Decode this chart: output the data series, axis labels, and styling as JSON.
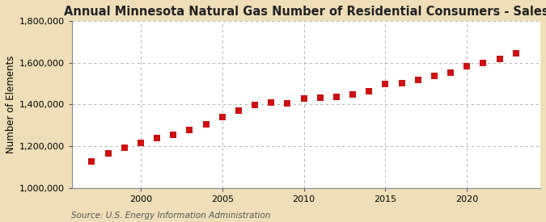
{
  "title": "Annual Minnesota Natural Gas Number of Residential Consumers - Sales",
  "ylabel": "Number of Elements",
  "source": "Source: U.S. Energy Information Administration",
  "fig_background_color": "#f0deb8",
  "plot_background_color": "#ffffff",
  "marker_color": "#cc1111",
  "marker_size": 28,
  "ylim": [
    1000000,
    1800000
  ],
  "yticks": [
    1000000,
    1200000,
    1400000,
    1600000,
    1800000
  ],
  "years": [
    1997,
    1998,
    1999,
    2000,
    2001,
    2002,
    2003,
    2004,
    2005,
    2006,
    2007,
    2008,
    2009,
    2010,
    2011,
    2012,
    2013,
    2014,
    2015,
    2016,
    2017,
    2018,
    2019,
    2020,
    2021,
    2022,
    2023
  ],
  "values": [
    1127000,
    1163000,
    1190000,
    1215000,
    1237000,
    1255000,
    1278000,
    1305000,
    1340000,
    1370000,
    1395000,
    1408000,
    1403000,
    1428000,
    1432000,
    1437000,
    1448000,
    1462000,
    1498000,
    1502000,
    1518000,
    1538000,
    1553000,
    1582000,
    1597000,
    1617000,
    1643000
  ],
  "xlim": [
    1995.8,
    2024.5
  ],
  "xtick_positions": [
    2000,
    2005,
    2010,
    2015,
    2020
  ],
  "xtick_labels": [
    "2000",
    "2005",
    "2010",
    "2015",
    "2020"
  ],
  "grid_color": "#aaaaaa",
  "title_fontsize": 10.5,
  "label_fontsize": 8.5,
  "tick_fontsize": 8,
  "source_fontsize": 7.5
}
